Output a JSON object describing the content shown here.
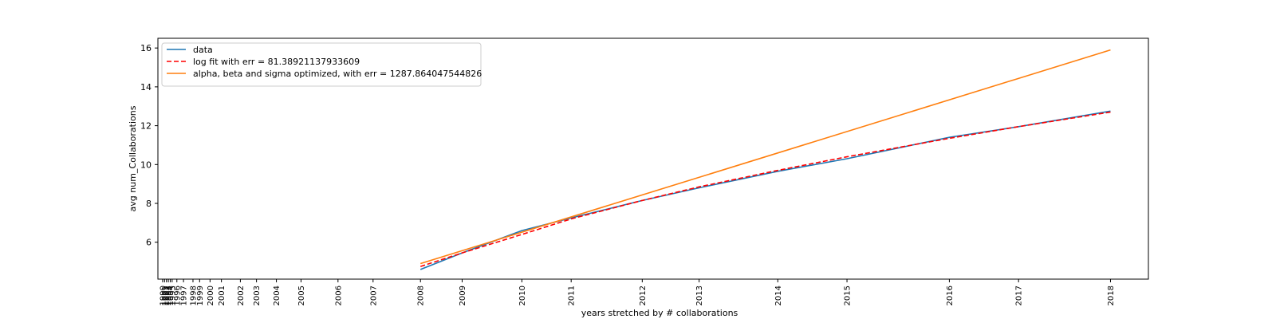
{
  "chart_data": {
    "type": "line",
    "xlabel": "years stretched by # collaborations",
    "ylabel": "avg num_Collaborations",
    "ylim": [
      4.1,
      16.5
    ],
    "yticks": [
      6,
      8,
      10,
      12,
      14,
      16
    ],
    "x_ticks": [
      {
        "label": "1990",
        "x": 0.0
      },
      {
        "label": "1991",
        "x": 0.2
      },
      {
        "label": "1992",
        "x": 0.4
      },
      {
        "label": "1993",
        "x": 0.6
      },
      {
        "label": "1994",
        "x": 0.8
      },
      {
        "label": "1995",
        "x": 1.0
      },
      {
        "label": "1996",
        "x": 1.5
      },
      {
        "label": "1997",
        "x": 2.2
      },
      {
        "label": "1998",
        "x": 3.2
      },
      {
        "label": "1999",
        "x": 3.9
      },
      {
        "label": "2000",
        "x": 5.0
      },
      {
        "label": "2001",
        "x": 6.2
      },
      {
        "label": "2002",
        "x": 8.2
      },
      {
        "label": "2003",
        "x": 9.9
      },
      {
        "label": "2004",
        "x": 12.0
      },
      {
        "label": "2005",
        "x": 14.6
      },
      {
        "label": "2006",
        "x": 18.5
      },
      {
        "label": "2007",
        "x": 22.2
      },
      {
        "label": "2008",
        "x": 27.2
      },
      {
        "label": "2009",
        "x": 31.6
      },
      {
        "label": "2010",
        "x": 37.9
      },
      {
        "label": "2011",
        "x": 43.1
      },
      {
        "label": "2012",
        "x": 50.6
      },
      {
        "label": "2013",
        "x": 56.6
      },
      {
        "label": "2014",
        "x": 64.9
      },
      {
        "label": "2015",
        "x": 72.2
      },
      {
        "label": "2016",
        "x": 83.0
      },
      {
        "label": "2017",
        "x": 90.3
      },
      {
        "label": "2018",
        "x": 100.0
      }
    ],
    "xlim": [
      -0.5,
      104.0
    ],
    "grid": false,
    "legend_position": "top-left",
    "series": [
      {
        "name": "data",
        "color": "#1f77b4",
        "style": "solid",
        "x": [
          27.2,
          31.6,
          37.9,
          43.1,
          50.6,
          56.6,
          64.9,
          72.2,
          83.0,
          90.3,
          100.0
        ],
        "y": [
          4.6,
          5.45,
          6.6,
          7.25,
          8.15,
          8.8,
          9.65,
          10.3,
          11.4,
          11.95,
          12.75
        ]
      },
      {
        "name": "log fit with err = 81.38921137933609",
        "color": "#ff0000",
        "style": "dashed",
        "x": [
          27.2,
          31.6,
          37.9,
          43.1,
          50.6,
          56.6,
          64.9,
          72.2,
          83.0,
          90.3,
          100.0
        ],
        "y": [
          4.75,
          5.45,
          6.4,
          7.2,
          8.15,
          8.85,
          9.7,
          10.4,
          11.35,
          11.95,
          12.7
        ]
      },
      {
        "name": "alpha, beta and sigma optimized, with err = 1287.864047544826",
        "color": "#ff7f0e",
        "style": "solid",
        "x": [
          27.2,
          100.0
        ],
        "y": [
          4.9,
          15.9
        ]
      }
    ]
  }
}
